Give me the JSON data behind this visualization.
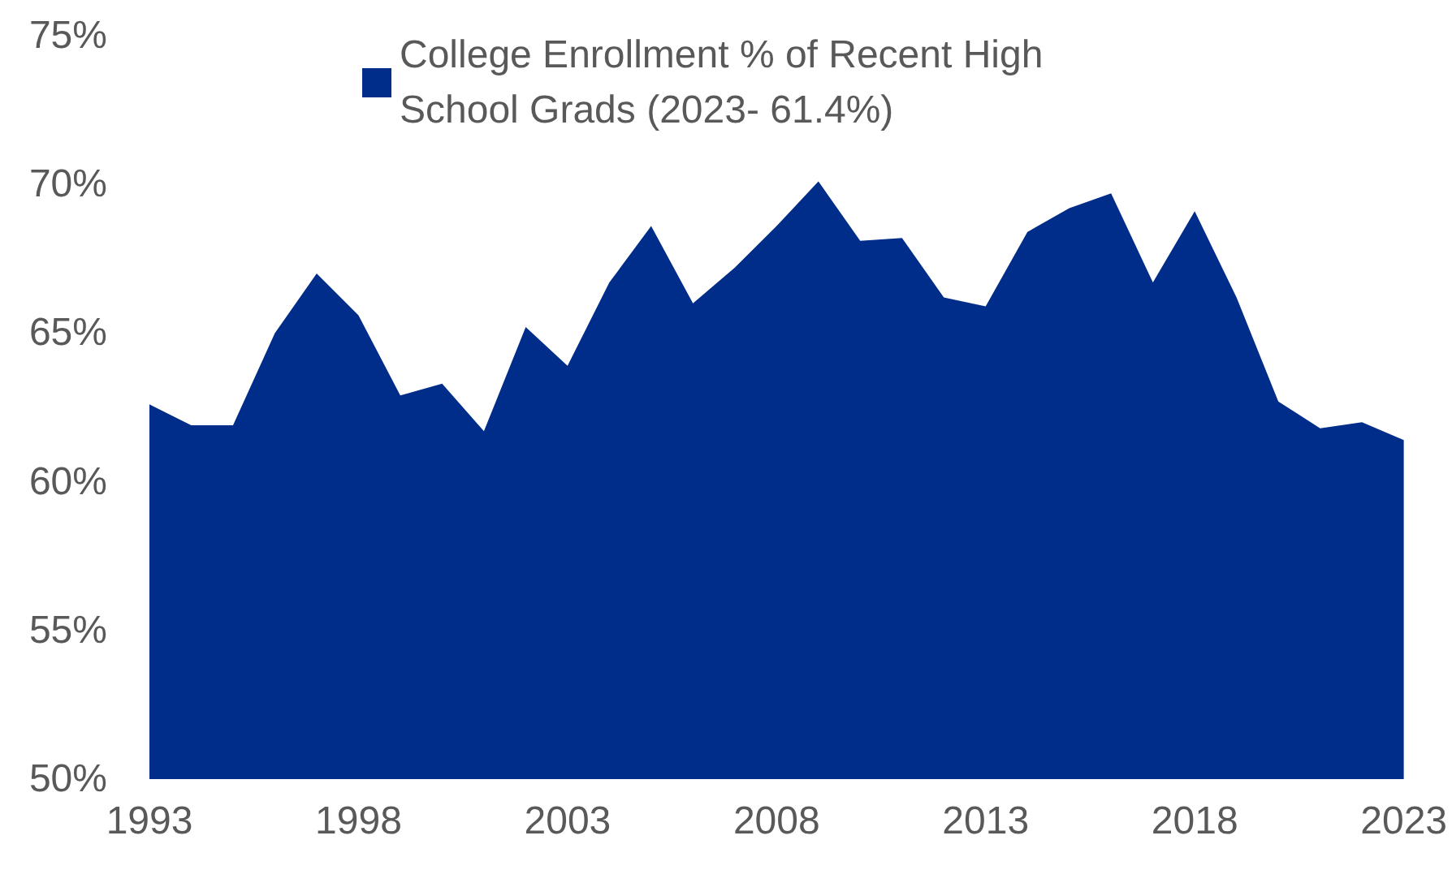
{
  "chart_data": {
    "type": "area",
    "x": [
      1993,
      1994,
      1995,
      1996,
      1997,
      1998,
      1999,
      2000,
      2001,
      2002,
      2003,
      2004,
      2005,
      2006,
      2007,
      2008,
      2009,
      2010,
      2011,
      2012,
      2013,
      2014,
      2015,
      2016,
      2017,
      2018,
      2019,
      2020,
      2021,
      2022,
      2023
    ],
    "series": [
      {
        "name": "College Enrollment % of Recent High School Grads (2023- 61.4%)",
        "color": "#002d8a",
        "values": [
          62.6,
          61.9,
          61.9,
          65.0,
          67.0,
          65.6,
          62.9,
          63.3,
          61.7,
          65.2,
          63.9,
          66.7,
          68.6,
          66.0,
          67.2,
          68.6,
          70.1,
          68.1,
          68.2,
          66.2,
          65.9,
          68.4,
          69.2,
          69.7,
          66.7,
          69.1,
          66.2,
          62.7,
          61.8,
          62.0,
          61.4
        ]
      }
    ],
    "xlim": [
      1993,
      2023
    ],
    "xticks": [
      1993,
      1998,
      2003,
      2008,
      2013,
      2018,
      2023
    ],
    "ylim": [
      50,
      75
    ],
    "yticks": [
      {
        "value": 50,
        "label": "50%"
      },
      {
        "value": 55,
        "label": "55%"
      },
      {
        "value": 60,
        "label": "60%"
      },
      {
        "value": 65,
        "label": "65%"
      },
      {
        "value": 70,
        "label": "70%"
      },
      {
        "value": 75,
        "label": "75%"
      }
    ],
    "grid": false,
    "legend": "top"
  }
}
